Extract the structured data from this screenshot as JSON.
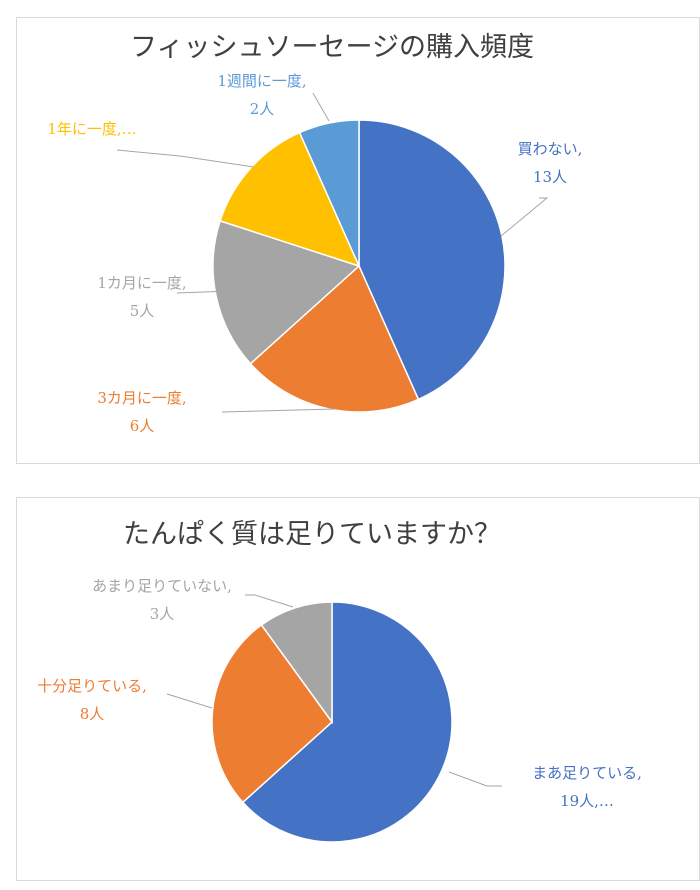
{
  "chart_data": [
    {
      "type": "pie",
      "title": "フィッシュソーセージの購入頻度",
      "slices": [
        {
          "name": "買わない",
          "value": 13,
          "color": "#4472c4",
          "label_line1": "買わない,",
          "label_line2": "13人"
        },
        {
          "name": "3カ月に一度",
          "value": 6,
          "color": "#ed7d31",
          "label_line1": "3カ月に一度,",
          "label_line2": "6人"
        },
        {
          "name": "1カ月に一度",
          "value": 5,
          "color": "#a5a5a5",
          "label_line1": "1カ月に一度,",
          "label_line2": "5人"
        },
        {
          "name": "1年に一度",
          "value": 4,
          "color": "#ffc000",
          "label_line1": "1年に一度,…",
          "label_line2": ""
        },
        {
          "name": "1週間に一度",
          "value": 2,
          "color": "#5b9bd5",
          "label_line1": "1週間に一度,",
          "label_line2": "2人"
        }
      ]
    },
    {
      "type": "pie",
      "title": "たんぱく質は足りていますか？",
      "slices": [
        {
          "name": "まあ足りている",
          "value": 19,
          "color": "#4472c4",
          "label_line1": "まあ足りている,",
          "label_line2": "19人,…"
        },
        {
          "name": "十分足りている",
          "value": 8,
          "color": "#ed7d31",
          "label_line1": "十分足りている,",
          "label_line2": "8人"
        },
        {
          "name": "あまり足りていない",
          "value": 3,
          "color": "#a5a5a5",
          "label_line1": "あまり足りていない,",
          "label_line2": "3人"
        }
      ]
    }
  ]
}
